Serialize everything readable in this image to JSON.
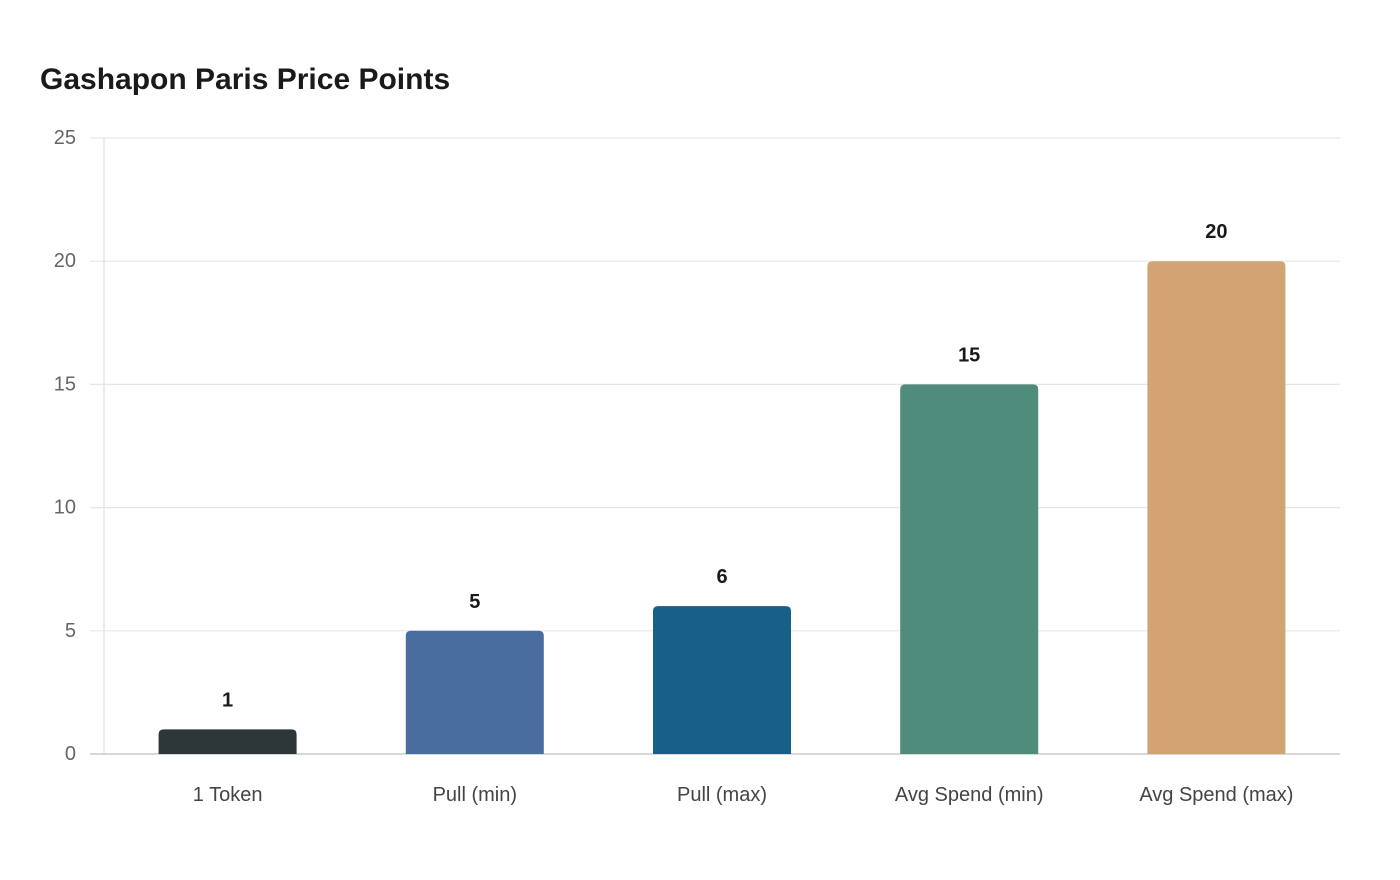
{
  "chart_data": {
    "type": "bar",
    "title": "Gashapon Paris Price Points",
    "xlabel": "",
    "ylabel": "",
    "categories": [
      "1 Token",
      "Pull (min)",
      "Pull (max)",
      "Avg Spend (min)",
      "Avg Spend (max)"
    ],
    "values": [
      1,
      5,
      6,
      15,
      20
    ],
    "colors": [
      "#2d3638",
      "#4a6da0",
      "#186087",
      "#4f8c7b",
      "#d2a473"
    ],
    "ylim": [
      0,
      25
    ],
    "yticks": [
      0,
      5,
      10,
      15,
      20,
      25
    ],
    "grid": true,
    "data_labels": true,
    "legend": "none",
    "gridline_color": "#e6e6e6",
    "axis_color": "#cccccc"
  }
}
